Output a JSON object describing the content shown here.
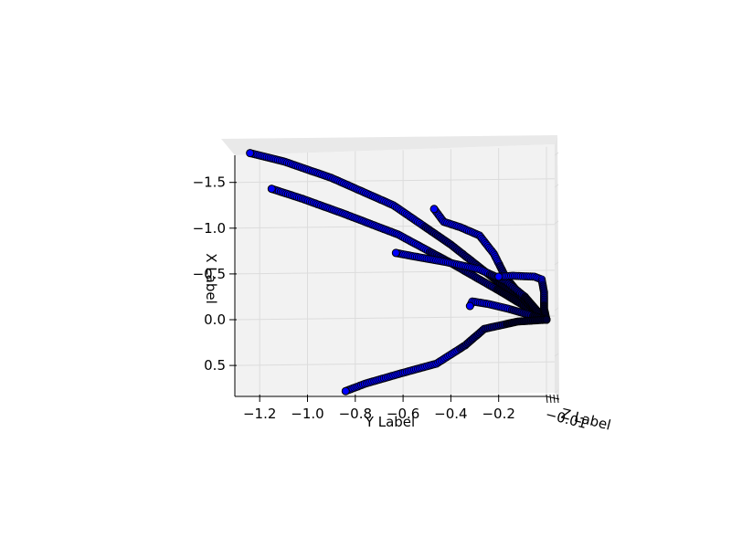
{
  "chart_data": {
    "type": "scatter",
    "projection": "3d",
    "xlabel": "X Label",
    "ylabel": "Y Label",
    "zlabel": "Z Label",
    "x_ticks": [
      "−1.5",
      "−1.0",
      "−0.5",
      "0.0",
      "0.5"
    ],
    "y_ticks": [
      "−1.2",
      "−1.0",
      "−0.8",
      "−0.6",
      "−0.4",
      "−0.2"
    ],
    "z_ticks_visible_fragment": "−0.01",
    "xlim": [
      -1.88,
      0.78
    ],
    "ylim": [
      -1.25,
      0.0
    ],
    "grid": true,
    "colors": {
      "marker_fill": "#0000ff",
      "marker_edge": "#000000",
      "pane": "#f2f2f2",
      "grid": "#dcdcdc"
    },
    "series": [
      {
        "points": [
          [
            -1.82,
            -1.24
          ],
          [
            -1.73,
            -1.1
          ],
          [
            -1.55,
            -0.9
          ],
          [
            -1.25,
            -0.64
          ],
          [
            -0.82,
            -0.4
          ],
          [
            -0.45,
            -0.22
          ],
          [
            -0.18,
            -0.08
          ],
          [
            0.0,
            0.0
          ]
        ]
      },
      {
        "points": [
          [
            -1.43,
            -1.15
          ],
          [
            -1.32,
            -1.02
          ],
          [
            -1.16,
            -0.85
          ],
          [
            -0.93,
            -0.62
          ],
          [
            -0.62,
            -0.4
          ],
          [
            -0.32,
            -0.2
          ],
          [
            -0.1,
            -0.06
          ],
          [
            0.0,
            0.0
          ]
        ]
      },
      {
        "points": [
          [
            -1.21,
            -0.47
          ],
          [
            -1.07,
            -0.43
          ],
          [
            -1.01,
            -0.36
          ],
          [
            -0.92,
            -0.28
          ],
          [
            -0.72,
            -0.22
          ],
          [
            -0.46,
            -0.17
          ],
          [
            -0.18,
            -0.08
          ],
          [
            0.0,
            0.0
          ]
        ]
      },
      {
        "points": [
          [
            -0.73,
            -0.63
          ],
          [
            -0.69,
            -0.55
          ],
          [
            -0.63,
            -0.42
          ],
          [
            -0.55,
            -0.28
          ],
          [
            -0.42,
            -0.17
          ],
          [
            -0.25,
            -0.09
          ],
          [
            -0.1,
            -0.04
          ],
          [
            0.0,
            0.0
          ]
        ]
      },
      {
        "points": [
          [
            -0.47,
            -0.2
          ],
          [
            -0.48,
            -0.14
          ],
          [
            -0.47,
            -0.05
          ],
          [
            -0.44,
            -0.02
          ],
          [
            -0.3,
            -0.01
          ],
          [
            -0.12,
            -0.01
          ],
          [
            0.0,
            0.0
          ]
        ]
      },
      {
        "points": [
          [
            -0.15,
            -0.32
          ],
          [
            -0.2,
            -0.31
          ],
          [
            -0.17,
            -0.24
          ],
          [
            -0.12,
            -0.16
          ],
          [
            -0.06,
            -0.08
          ],
          [
            0.0,
            0.0
          ]
        ]
      },
      {
        "points": [
          [
            0.78,
            -0.84
          ],
          [
            0.7,
            -0.76
          ],
          [
            0.58,
            -0.6
          ],
          [
            0.48,
            -0.46
          ],
          [
            0.28,
            -0.34
          ],
          [
            0.1,
            -0.26
          ],
          [
            0.02,
            -0.12
          ],
          [
            0.0,
            0.0
          ]
        ]
      }
    ]
  }
}
